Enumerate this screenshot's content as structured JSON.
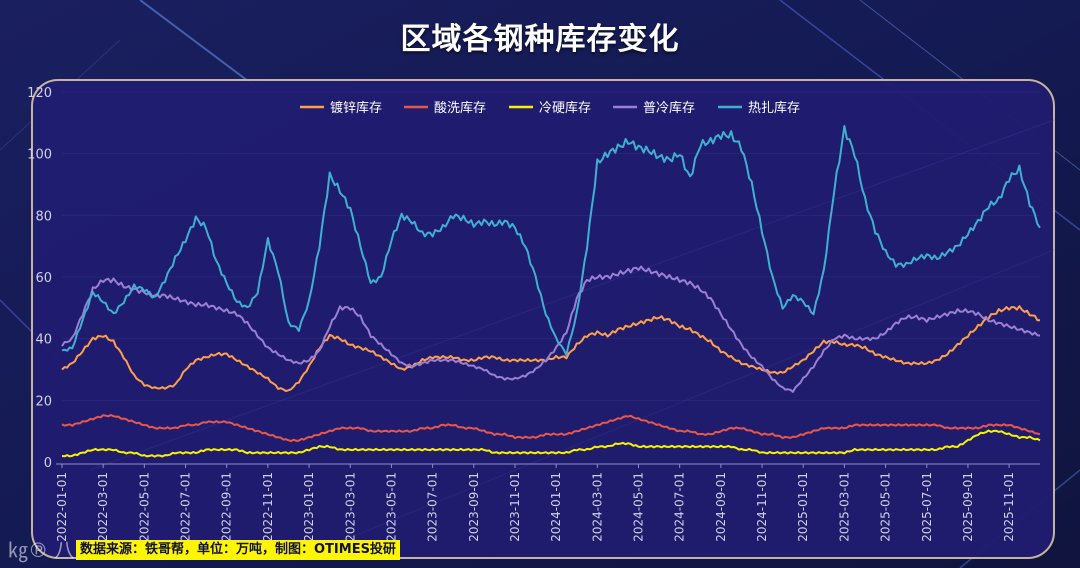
{
  "chart_data": {
    "type": "line",
    "title": "区域各钢种库存变化",
    "xlabel": "",
    "ylabel": "",
    "ylim": [
      0,
      120
    ],
    "yticks": [
      0,
      20,
      40,
      60,
      80,
      100,
      120
    ],
    "xtick_labels": [
      "2022-01-01",
      "2022-03-01",
      "2022-05-01",
      "2022-07-01",
      "2022-09-01",
      "2022-11-01",
      "2023-01-01",
      "2023-03-01",
      "2023-05-01",
      "2023-07-01",
      "2023-09-01",
      "2023-11-01",
      "2024-01-01",
      "2024-03-01",
      "2024-05-01",
      "2024-07-01",
      "2024-09-01",
      "2024-11-01",
      "2025-01-01",
      "2025-03-01",
      "2025-05-01",
      "2025-07-01",
      "2025-09-01",
      "2025-11-01"
    ],
    "legend_position": "top-center",
    "x_step": "semi-monthly",
    "x_range": [
      "2022-01-01",
      "2025-12-15"
    ],
    "series": [
      {
        "name": "镀锌库存",
        "color": "#ff9f4a",
        "values": [
          30,
          32,
          36,
          40,
          41,
          39,
          34,
          28,
          25,
          24,
          24,
          25,
          30,
          33,
          34,
          35,
          35,
          33,
          31,
          29,
          27,
          24,
          23,
          26,
          31,
          37,
          41,
          40,
          38,
          37,
          36,
          34,
          32,
          30,
          31,
          33,
          34,
          34,
          34,
          33,
          33,
          34,
          34,
          33,
          33,
          33,
          33,
          33,
          34,
          34,
          38,
          41,
          42,
          41,
          43,
          44,
          45,
          46,
          47,
          46,
          44,
          43,
          41,
          39,
          36,
          34,
          32,
          31,
          30,
          29,
          29,
          31,
          33,
          36,
          39,
          39,
          38,
          38,
          37,
          35,
          34,
          33,
          32,
          32,
          32,
          33,
          35,
          38,
          41,
          44,
          47,
          49,
          50,
          50,
          48,
          46
        ]
      },
      {
        "name": "酸洗库存",
        "color": "#e8584a",
        "values": [
          12,
          12,
          13,
          14,
          15,
          15,
          14,
          13,
          12,
          11,
          11,
          11,
          12,
          12,
          13,
          13,
          13,
          12,
          11,
          10,
          9,
          8,
          7,
          7,
          8,
          9,
          10,
          11,
          11,
          11,
          10,
          10,
          10,
          10,
          10,
          11,
          11,
          12,
          12,
          11,
          11,
          10,
          9,
          9,
          8,
          8,
          8,
          9,
          9,
          9,
          10,
          11,
          12,
          13,
          14,
          15,
          14,
          13,
          12,
          11,
          10,
          10,
          9,
          9,
          10,
          11,
          11,
          10,
          9,
          9,
          8,
          8,
          9,
          10,
          11,
          11,
          11,
          12,
          12,
          12,
          12,
          12,
          12,
          12,
          12,
          12,
          11,
          11,
          11,
          11,
          12,
          12,
          12,
          11,
          10,
          9
        ]
      },
      {
        "name": "冷硬库存",
        "color": "#f8f200",
        "values": [
          2,
          2,
          3,
          4,
          4,
          4,
          3,
          3,
          2,
          2,
          2,
          3,
          3,
          3,
          4,
          4,
          4,
          4,
          3,
          3,
          3,
          3,
          3,
          3,
          4,
          5,
          5,
          4,
          4,
          4,
          4,
          4,
          4,
          4,
          4,
          4,
          4,
          4,
          4,
          4,
          4,
          4,
          3,
          3,
          3,
          3,
          3,
          3,
          3,
          3,
          4,
          4,
          5,
          5,
          6,
          6,
          5,
          5,
          5,
          5,
          5,
          5,
          5,
          5,
          5,
          5,
          4,
          4,
          3,
          3,
          3,
          3,
          3,
          3,
          3,
          3,
          3,
          4,
          4,
          4,
          4,
          4,
          4,
          4,
          4,
          4,
          5,
          5,
          7,
          9,
          10,
          10,
          9,
          8,
          8,
          7
        ]
      },
      {
        "name": "普冷库存",
        "color": "#9b7fd3",
        "values": [
          38,
          40,
          48,
          56,
          59,
          59,
          57,
          56,
          55,
          54,
          54,
          53,
          52,
          51,
          51,
          50,
          49,
          48,
          45,
          41,
          37,
          35,
          33,
          32,
          33,
          36,
          44,
          50,
          50,
          47,
          41,
          38,
          35,
          32,
          31,
          32,
          33,
          33,
          33,
          32,
          31,
          30,
          28,
          27,
          27,
          28,
          30,
          33,
          37,
          42,
          53,
          59,
          60,
          60,
          61,
          62,
          63,
          62,
          61,
          60,
          59,
          58,
          56,
          53,
          48,
          43,
          38,
          34,
          31,
          27,
          24,
          23,
          27,
          31,
          36,
          40,
          41,
          40,
          40,
          40,
          42,
          45,
          47,
          47,
          46,
          47,
          48,
          49,
          49,
          48,
          46,
          45,
          44,
          43,
          42,
          41
        ]
      },
      {
        "name": "热扎库存",
        "color": "#40b0d0",
        "values": [
          36,
          37,
          46,
          55,
          52,
          48,
          52,
          57,
          56,
          53,
          59,
          66,
          72,
          79,
          76,
          65,
          58,
          52,
          50,
          55,
          72,
          62,
          45,
          43,
          52,
          70,
          93,
          88,
          82,
          70,
          58,
          60,
          72,
          80,
          78,
          74,
          74,
          76,
          80,
          79,
          77,
          78,
          77,
          78,
          76,
          70,
          60,
          48,
          40,
          35,
          48,
          70,
          97,
          100,
          102,
          104,
          102,
          101,
          99,
          98,
          100,
          92,
          103,
          104,
          106,
          106,
          102,
          90,
          75,
          60,
          50,
          54,
          52,
          48,
          62,
          88,
          108,
          100,
          85,
          75,
          68,
          64,
          64,
          66,
          67,
          66,
          68,
          70,
          74,
          78,
          83,
          85,
          92,
          95,
          84,
          76
        ]
      }
    ]
  },
  "source": {
    "text": "数据来源：铁哥帮，单位：万吨，制图：OTIMES投研"
  },
  "watermark": {
    "text": "㎏℗ 八"
  },
  "colors": {
    "background": "#141a52",
    "plot_panel": "#201d70",
    "axis": "#c8c8e0"
  }
}
